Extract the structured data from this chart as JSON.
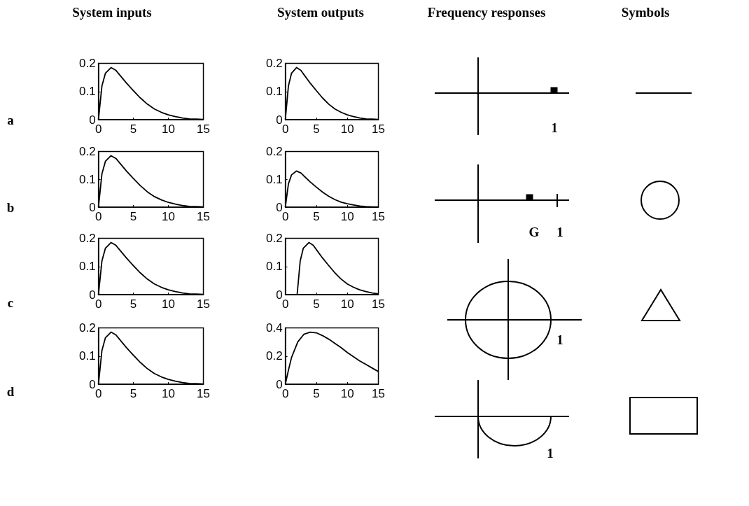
{
  "chart_data": [
    {
      "type": "line",
      "marker": "none",
      "color": "#000000",
      "xlim": [
        0,
        15
      ],
      "xticks": [
        0,
        5,
        10,
        15
      ],
      "ylim": [
        0,
        0.2
      ],
      "yticks": [
        0,
        0.1,
        0.2
      ],
      "x": [
        0,
        0.5,
        1,
        1.8,
        2.5,
        3,
        4,
        5,
        6,
        7,
        8,
        9,
        10,
        11,
        12,
        13,
        14,
        15
      ],
      "values": [
        0,
        0.12,
        0.165,
        0.185,
        0.175,
        0.16,
        0.13,
        0.103,
        0.077,
        0.055,
        0.038,
        0.026,
        0.017,
        0.011,
        0.006,
        0.003,
        0.002,
        0.001
      ]
    },
    {
      "type": "line",
      "marker": "none",
      "color": "#000000",
      "xlim": [
        0,
        15
      ],
      "xticks": [
        0,
        5,
        10,
        15
      ],
      "ylim": [
        0,
        0.2
      ],
      "yticks": [
        0,
        0.1,
        0.2
      ],
      "x": [
        0,
        0.5,
        1,
        1.8,
        2.5,
        3,
        4,
        5,
        6,
        7,
        8,
        9,
        10,
        11,
        12,
        13,
        14,
        15
      ],
      "values": [
        0,
        0.12,
        0.165,
        0.185,
        0.175,
        0.16,
        0.13,
        0.103,
        0.077,
        0.055,
        0.038,
        0.026,
        0.017,
        0.011,
        0.006,
        0.003,
        0.002,
        0.001
      ]
    },
    {
      "type": "line",
      "marker": "none",
      "color": "#000000",
      "xlim": [
        0,
        15
      ],
      "xticks": [
        0,
        5,
        10,
        15
      ],
      "ylim": [
        0,
        0.2
      ],
      "yticks": [
        0,
        0.1,
        0.2
      ],
      "x": [
        0,
        0.5,
        1,
        1.8,
        2.5,
        3,
        4,
        5,
        6,
        7,
        8,
        9,
        10,
        11,
        12,
        13,
        14,
        15
      ],
      "values": [
        0,
        0.12,
        0.165,
        0.185,
        0.175,
        0.16,
        0.13,
        0.103,
        0.077,
        0.055,
        0.038,
        0.026,
        0.017,
        0.011,
        0.006,
        0.003,
        0.002,
        0.001
      ]
    },
    {
      "type": "line",
      "marker": "none",
      "color": "#000000",
      "xlim": [
        0,
        15
      ],
      "xticks": [
        0,
        5,
        10,
        15
      ],
      "ylim": [
        0,
        0.2
      ],
      "yticks": [
        0,
        0.1,
        0.2
      ],
      "x": [
        0,
        0.5,
        1,
        1.8,
        2.5,
        3,
        4,
        5,
        6,
        7,
        8,
        9,
        10,
        11,
        12,
        13,
        14,
        15
      ],
      "values": [
        0,
        0.084,
        0.116,
        0.13,
        0.123,
        0.112,
        0.091,
        0.072,
        0.054,
        0.039,
        0.027,
        0.018,
        0.012,
        0.008,
        0.004,
        0.002,
        0.001,
        0.001
      ]
    },
    {
      "type": "line",
      "marker": "none",
      "color": "#000000",
      "xlim": [
        0,
        15
      ],
      "xticks": [
        0,
        5,
        10,
        15
      ],
      "ylim": [
        0,
        0.2
      ],
      "yticks": [
        0,
        0.1,
        0.2
      ],
      "x": [
        0,
        0.5,
        1,
        1.8,
        2.5,
        3,
        4,
        5,
        6,
        7,
        8,
        9,
        10,
        11,
        12,
        13,
        14,
        15
      ],
      "values": [
        0,
        0.12,
        0.165,
        0.185,
        0.175,
        0.16,
        0.13,
        0.103,
        0.077,
        0.055,
        0.038,
        0.026,
        0.017,
        0.011,
        0.006,
        0.003,
        0.002,
        0.001
      ]
    },
    {
      "type": "line",
      "marker": "none",
      "color": "#000000",
      "xlim": [
        0,
        15
      ],
      "xticks": [
        0,
        5,
        10,
        15
      ],
      "ylim": [
        0,
        0.2
      ],
      "yticks": [
        0,
        0.1,
        0.2
      ],
      "x": [
        0,
        1.9,
        2.4,
        2.9,
        3.8,
        4.5,
        5,
        6,
        7,
        8,
        9,
        10,
        11,
        12,
        13,
        14,
        15
      ],
      "values": [
        0,
        0,
        0.12,
        0.165,
        0.185,
        0.175,
        0.16,
        0.13,
        0.103,
        0.077,
        0.055,
        0.038,
        0.026,
        0.017,
        0.011,
        0.006,
        0.003
      ]
    },
    {
      "type": "line",
      "marker": "none",
      "color": "#000000",
      "xlim": [
        0,
        15
      ],
      "xticks": [
        0,
        5,
        10,
        15
      ],
      "ylim": [
        0,
        0.2
      ],
      "yticks": [
        0,
        0.1,
        0.2
      ],
      "x": [
        0,
        0.5,
        1,
        1.8,
        2.5,
        3,
        4,
        5,
        6,
        7,
        8,
        9,
        10,
        11,
        12,
        13,
        14,
        15
      ],
      "values": [
        0,
        0.12,
        0.165,
        0.185,
        0.175,
        0.16,
        0.13,
        0.103,
        0.077,
        0.055,
        0.038,
        0.026,
        0.017,
        0.011,
        0.006,
        0.003,
        0.002,
        0.001
      ]
    },
    {
      "type": "line",
      "marker": "none",
      "color": "#000000",
      "xlim": [
        0,
        15
      ],
      "xticks": [
        0,
        5,
        10,
        15
      ],
      "ylim": [
        0,
        0.4
      ],
      "yticks": [
        0,
        0.2,
        0.4
      ],
      "x": [
        0,
        0.5,
        1,
        2,
        3,
        4,
        5,
        6,
        7,
        8,
        9,
        10,
        11,
        12,
        13,
        14,
        15
      ],
      "values": [
        0,
        0.1,
        0.19,
        0.3,
        0.355,
        0.37,
        0.365,
        0.345,
        0.32,
        0.29,
        0.26,
        0.225,
        0.195,
        0.165,
        0.14,
        0.115,
        0.09
      ]
    },
    {
      "type": "other",
      "annotations": [
        "System inputs",
        "System outputs",
        "Frequency responses",
        "Symbols",
        "a",
        "b",
        "c",
        "d",
        "1",
        "G",
        "1",
        "1",
        "1"
      ]
    }
  ]
}
